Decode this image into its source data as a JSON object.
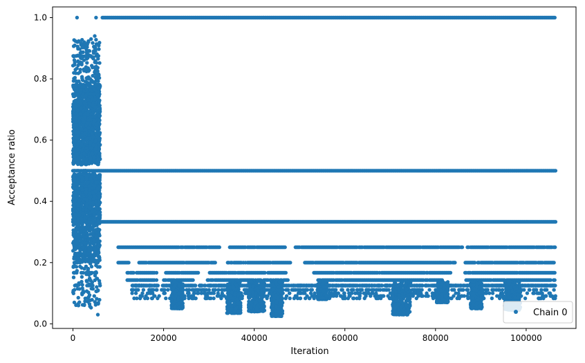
{
  "chart_data": {
    "type": "scatter",
    "title": "",
    "xlabel": "Iteration",
    "ylabel": "Acceptance ratio",
    "xlim": [
      -4500,
      111000
    ],
    "ylim": [
      -0.015,
      1.035
    ],
    "x_ticks": [
      0,
      20000,
      40000,
      60000,
      80000,
      100000
    ],
    "x_tick_labels": [
      "0",
      "20000",
      "40000",
      "60000",
      "80000",
      "100000"
    ],
    "y_ticks": [
      0.0,
      0.2,
      0.4,
      0.6,
      0.8,
      1.0
    ],
    "y_tick_labels": [
      "0.0",
      "0.2",
      "0.4",
      "0.6",
      "0.8",
      "1.0"
    ],
    "grid": false,
    "legend": {
      "position": "lower-right",
      "entries": [
        "Chain 0"
      ]
    },
    "series": [
      {
        "name": "Chain 0",
        "color": "#1f77b4",
        "marker": "circle",
        "description_levels": [
          1.0,
          0.5,
          0.3333,
          0.25,
          0.2,
          0.1667,
          0.1429,
          0.125,
          0.1111,
          0.1
        ],
        "bands": [
          {
            "y": 1.0,
            "x_range": [
              6500,
              106500
            ]
          },
          {
            "y": 0.5,
            "x_range": [
              0,
              106500
            ]
          },
          {
            "y": 0.3333,
            "x_range": [
              0,
              106500
            ]
          },
          {
            "y": 0.25,
            "x_range": [
              10000,
              106500
            ],
            "gaps": [
              [
                32500,
                34500
              ],
              [
                47000,
                49000
              ],
              [
                86000,
                87000
              ]
            ]
          },
          {
            "y": 0.2,
            "x_range": [
              10000,
              106500
            ],
            "gaps": [
              [
                12500,
                14500
              ],
              [
                31500,
                34000
              ],
              [
                48000,
                51000
              ],
              [
                84500,
                86500
              ]
            ]
          },
          {
            "y": 0.1667,
            "x_range": [
              12000,
              106500
            ],
            "gaps": [
              [
                18500,
                20500
              ],
              [
                28000,
                30000
              ],
              [
                47000,
                53000
              ],
              [
                83500,
                86500
              ]
            ]
          },
          {
            "y": 0.1429,
            "x_range": [
              12000,
              106500
            ],
            "gaps": [
              [
                18500,
                20000
              ],
              [
                26500,
                29500
              ],
              [
                47500,
                54000
              ],
              [
                81500,
                86500
              ]
            ]
          }
        ],
        "early_block": {
          "x_range": [
            0,
            6000
          ],
          "y_range": [
            0.03,
            0.94
          ]
        },
        "low_clusters": [
          {
            "x_center": 23000,
            "width": 2500,
            "y_min": 0.05
          },
          {
            "x_center": 35500,
            "width": 3000,
            "y_min": 0.035
          },
          {
            "x_center": 40500,
            "width": 3500,
            "y_min": 0.04
          },
          {
            "x_center": 45000,
            "width": 2500,
            "y_min": 0.025
          },
          {
            "x_center": 55000,
            "width": 2000,
            "y_min": 0.08
          },
          {
            "x_center": 72500,
            "width": 4000,
            "y_min": 0.03
          },
          {
            "x_center": 81500,
            "width": 2500,
            "y_min": 0.07
          },
          {
            "x_center": 89000,
            "width": 2500,
            "y_min": 0.05
          },
          {
            "x_center": 97000,
            "width": 3500,
            "y_min": 0.045
          }
        ],
        "sample_points": [
          {
            "x": 900,
            "y": 1.0
          },
          {
            "x": 5100,
            "y": 1.0
          },
          {
            "x": 4800,
            "y": 0.94
          },
          {
            "x": 4000,
            "y": 0.93
          },
          {
            "x": 2500,
            "y": 0.92
          },
          {
            "x": 300,
            "y": 0.07
          },
          {
            "x": 1200,
            "y": 0.06
          },
          {
            "x": 5500,
            "y": 0.03
          },
          {
            "x": 46000,
            "y": 0.025
          },
          {
            "x": 73000,
            "y": 0.03
          },
          {
            "x": 105800,
            "y": 0.09
          }
        ]
      }
    ]
  }
}
